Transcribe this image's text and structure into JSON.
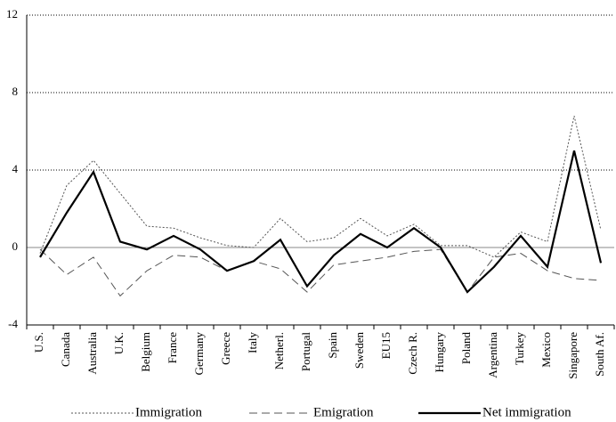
{
  "chart_data": {
    "type": "line",
    "categories": [
      "U.S.",
      "Canada",
      "Australia",
      "U.K.",
      "Belgium",
      "France",
      "Germany",
      "Greece",
      "Italy",
      "Netherl.",
      "Portugal",
      "Spain",
      "Sweden",
      "EU15",
      "Czech R.",
      "Hungary",
      "Poland",
      "Argentina",
      "Turkey",
      "Mexico",
      "Singapore",
      "South Af."
    ],
    "series": [
      {
        "name": "Immigration",
        "color": "#555555",
        "style": "dotted",
        "values": [
          -0.3,
          3.2,
          4.5,
          2.8,
          1.1,
          1.0,
          0.5,
          0.1,
          0.0,
          1.5,
          0.3,
          0.5,
          1.5,
          0.6,
          1.2,
          0.1,
          0.1,
          -0.5,
          0.8,
          0.3,
          6.8,
          0.9
        ]
      },
      {
        "name": "Emigration",
        "color": "#555555",
        "style": "dashed",
        "values": [
          -0.1,
          -1.4,
          -0.5,
          -2.5,
          -1.2,
          -0.4,
          -0.5,
          -1.2,
          -0.7,
          -1.1,
          -2.3,
          -0.9,
          -0.7,
          -0.5,
          -0.2,
          -0.1,
          -2.3,
          -0.5,
          -0.3,
          -1.2,
          -1.6,
          -1.7
        ]
      },
      {
        "name": "Net immigration",
        "color": "#000000",
        "style": "solid",
        "values": [
          -0.5,
          1.8,
          3.9,
          0.3,
          -0.1,
          0.6,
          -0.1,
          -1.2,
          -0.7,
          0.4,
          -2.0,
          -0.4,
          0.7,
          0.0,
          1.0,
          0.0,
          -2.3,
          -1.0,
          0.6,
          -1.0,
          5.0,
          -0.8
        ]
      }
    ],
    "ylim": [
      -4,
      12
    ],
    "yticks": [
      -4,
      0,
      4,
      8,
      12
    ],
    "grid": true,
    "legend": "bottom"
  }
}
